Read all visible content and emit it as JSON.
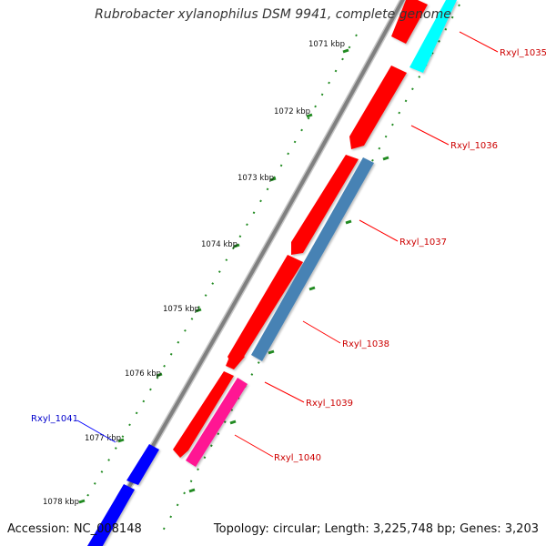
{
  "title": "Rubrobacter xylanophilus DSM 9941, complete genome",
  "footer": {
    "accession": "Accession: NC_008148",
    "summary": "Topology: circular; Length: 3,225,748 bp; Genes: 3,203"
  },
  "scale_labels": [
    "1071 kbp",
    "1072 kbp",
    "1073 kbp",
    "1074 kbp",
    "1075 kbp",
    "1076 kbp",
    "1077 kbp",
    "1078 kbp"
  ],
  "genes": [
    {
      "name": "Rxyl_1035",
      "color": "#ff0000",
      "strand": "reverse"
    },
    {
      "name": "Rxyl_1036",
      "color": "#ff0000",
      "strand": "reverse"
    },
    {
      "name": "Rxyl_1037",
      "color": "#ff0000",
      "strand": "reverse"
    },
    {
      "name": "Rxyl_1038",
      "color": "#4682b4",
      "strand": "forward"
    },
    {
      "name": "Rxyl_1039",
      "color": "#ff0000",
      "strand": "reverse"
    },
    {
      "name": "Rxyl_1040",
      "color": "#ff1493",
      "strand": "forward"
    },
    {
      "name": "Rxyl_1041",
      "color": "#0000ff",
      "strand": "reverse"
    }
  ],
  "colors": {
    "backbone": "#808080",
    "ticks": "#228b22",
    "label_red": "#cc0000",
    "label_blue": "#0000cc",
    "cyan_feature": "#00ffff"
  }
}
